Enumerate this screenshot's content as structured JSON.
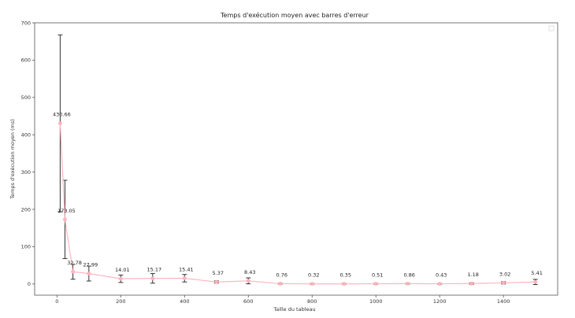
{
  "chart_data": {
    "type": "line",
    "title": "Temps d'exécution moyen avec barres d'erreur",
    "xlabel": "Taille du tableau",
    "ylabel": "Temps d'exécution moyen (ms)",
    "xlim": [
      -70,
      1570
    ],
    "ylim": [
      -30,
      700
    ],
    "xticks": [
      0,
      200,
      400,
      600,
      800,
      1000,
      1200,
      1400
    ],
    "yticks": [
      0,
      100,
      200,
      300,
      400,
      500,
      600,
      700
    ],
    "x": [
      10,
      25,
      50,
      100,
      200,
      300,
      400,
      500,
      600,
      700,
      800,
      900,
      1000,
      1100,
      1200,
      1300,
      1400,
      1500
    ],
    "values": [
      430.66,
      173.05,
      32.78,
      27.99,
      14.01,
      15.17,
      15.41,
      5.37,
      8.43,
      0.76,
      0.32,
      0.35,
      0.51,
      0.86,
      0.43,
      1.18,
      3.02,
      5.41
    ],
    "labels": [
      "430.66",
      "173.05",
      "32.78",
      "27.99",
      "14.01",
      "15.17",
      "15.41",
      "5.37",
      "8.43",
      "0.76",
      "0.32",
      "0.35",
      "0.51",
      "0.86",
      "0.43",
      "1.18",
      "3.02",
      "5.41"
    ],
    "errors": [
      237,
      105,
      20,
      20,
      10,
      13,
      10,
      3,
      8,
      1,
      1,
      1,
      1,
      1,
      1,
      2,
      3,
      7
    ],
    "line_color": "#ffb6c1",
    "marker_color": "#ffb6c1",
    "errorbar_color": "#333333",
    "grid": false,
    "legend": "top-right (empty)"
  }
}
